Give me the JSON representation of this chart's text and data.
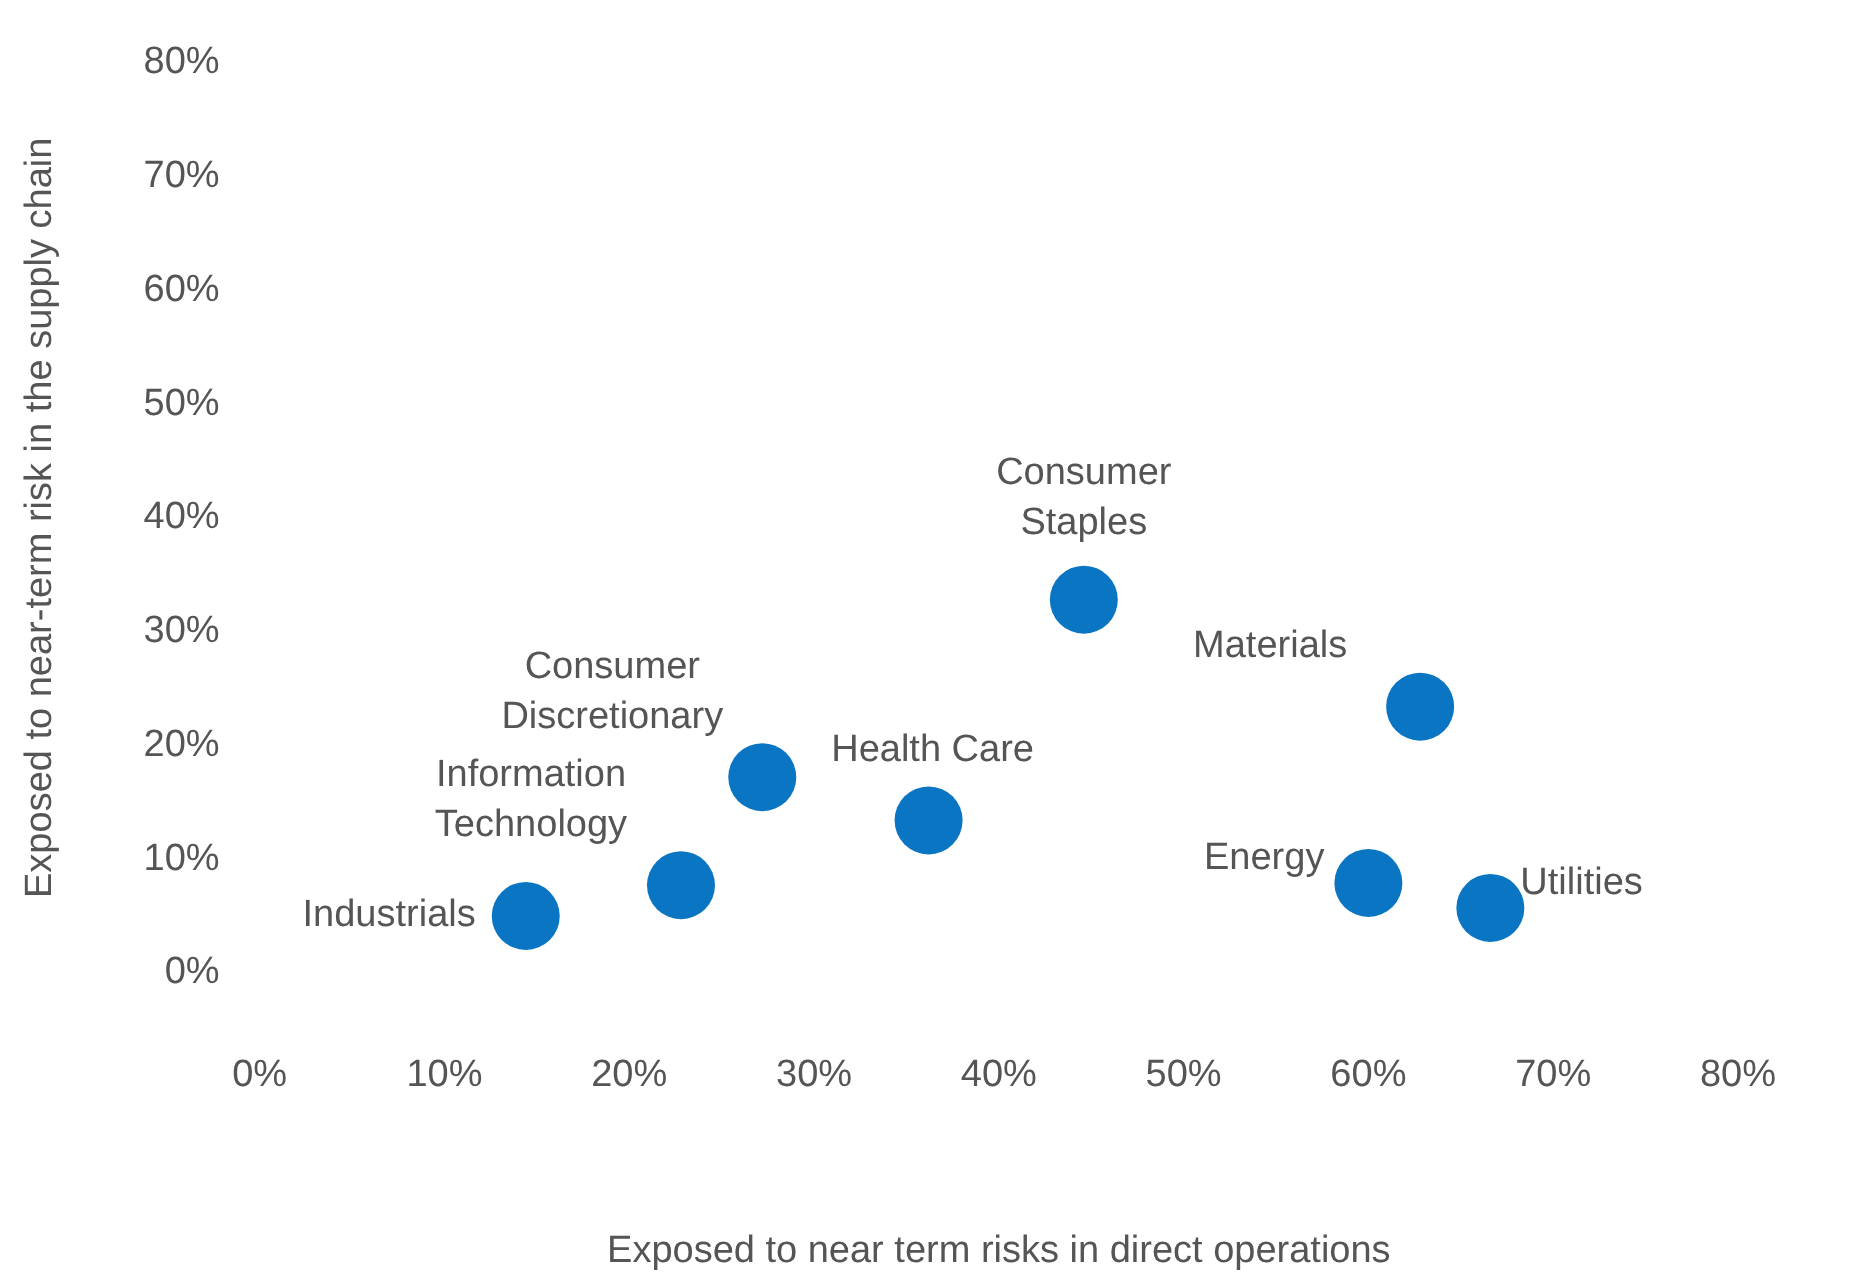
{
  "chart_data": {
    "type": "scatter",
    "xlabel": "Exposed to near term risks in direct operations",
    "ylabel": "Exposed to near-term risk in the supply chain",
    "xlim": [
      0,
      80
    ],
    "xticks": [
      {
        "value": 0,
        "label": "0%"
      },
      {
        "value": 10,
        "label": "10%"
      },
      {
        "value": 20,
        "label": "20%"
      },
      {
        "value": 30,
        "label": "30%"
      },
      {
        "value": 40,
        "label": "40%"
      },
      {
        "value": 50,
        "label": "50%"
      },
      {
        "value": 60,
        "label": "60%"
      },
      {
        "value": 70,
        "label": "70%"
      },
      {
        "value": 80,
        "label": "80%"
      }
    ],
    "ylim": [
      0,
      80
    ],
    "yticks": [
      {
        "value": 0,
        "label": "0%"
      },
      {
        "value": 10,
        "label": "10%"
      },
      {
        "value": 20,
        "label": "20%"
      },
      {
        "value": 30,
        "label": "30%"
      },
      {
        "value": 40,
        "label": "40%"
      },
      {
        "value": 50,
        "label": "50%"
      },
      {
        "value": 60,
        "label": "60%"
      },
      {
        "value": 70,
        "label": "70%"
      },
      {
        "value": 80,
        "label": "80%"
      }
    ],
    "grid": false,
    "legend": false,
    "marker": "circle",
    "series": [
      {
        "name": "Industrials",
        "color": "#0a75c2",
        "x": [
          14.4
        ],
        "values": [
          5.0
        ]
      },
      {
        "name": "Information Technology",
        "color": "#0a75c2",
        "x": [
          22.8
        ],
        "values": [
          7.7
        ]
      },
      {
        "name": "Consumer Discretionary",
        "color": "#0a75c2",
        "x": [
          27.2
        ],
        "values": [
          17.2
        ]
      },
      {
        "name": "Health Care",
        "color": "#0a75c2",
        "x": [
          36.2
        ],
        "values": [
          13.4
        ]
      },
      {
        "name": "Consumer Staples",
        "color": "#0a75c2",
        "x": [
          44.6
        ],
        "values": [
          32.8
        ]
      },
      {
        "name": "Materials",
        "color": "#0a75c2",
        "x": [
          62.8
        ],
        "values": [
          23.4
        ]
      },
      {
        "name": "Energy",
        "color": "#0a75c2",
        "x": [
          60.0
        ],
        "values": [
          7.9
        ]
      },
      {
        "name": "Utilities",
        "color": "#0a75c2",
        "x": [
          66.6
        ],
        "values": [
          5.7
        ]
      }
    ]
  }
}
